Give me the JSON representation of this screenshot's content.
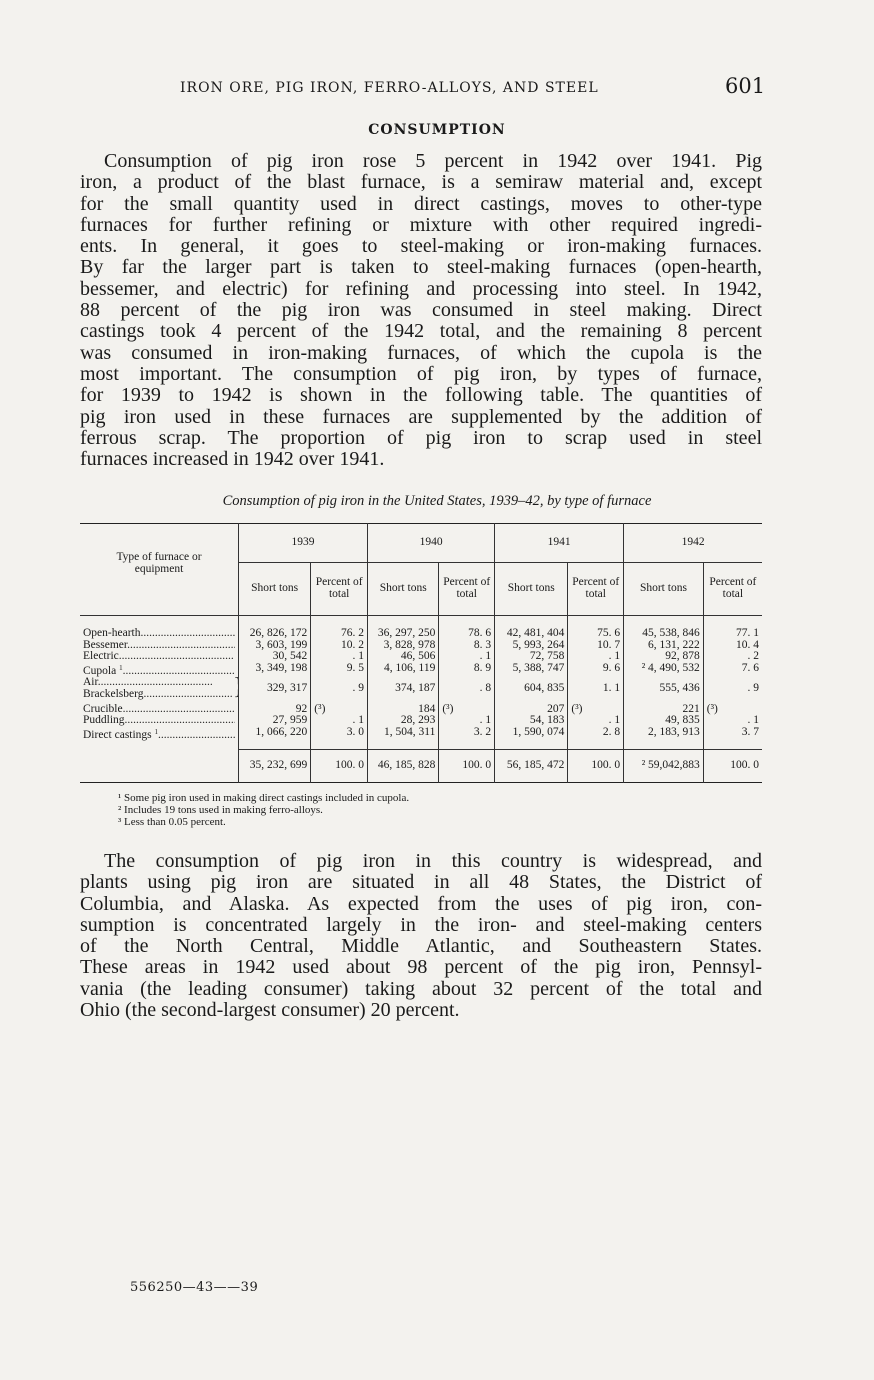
{
  "header": {
    "running_head": "IRON ORE, PIG IRON, FERRO-ALLOYS, AND STEEL",
    "page_number": "601"
  },
  "section_title": "CONSUMPTION",
  "paragraph1": [
    "Consumption of pig iron rose 5 percent in 1942 over 1941. Pig",
    "iron, a product of the blast furnace, is a semiraw material and, except",
    "for the small quantity used in direct castings, moves to other-type",
    "furnaces for further refining or mixture with other required ingredi-",
    "ents. In general, it goes to steel-making or iron-making furnaces.",
    "By far the larger part is taken to steel-making furnaces (open-hearth,",
    "bessemer, and electric) for refining and processing into steel. In 1942,",
    "88 percent of the pig iron was consumed in steel making. Direct",
    "castings took 4 percent of the 1942 total, and the remaining 8 percent",
    "was consumed in iron-making furnaces, of which the cupola is the",
    "most important. The consumption of pig iron, by types of furnace,",
    "for 1939 to 1942 is shown in the following table. The quantities of",
    "pig iron used in these furnaces are supplemented by the addition of",
    "ferrous scrap. The proportion of pig iron to scrap used in steel",
    "furnaces increased in 1942 over 1941."
  ],
  "table": {
    "caption": "Consumption of pig iron in the United States, 1939–42, by type of furnace",
    "row_header": "Type of furnace or equipment",
    "years": [
      "1939",
      "1940",
      "1941",
      "1942"
    ],
    "sub_short": "Short tons",
    "sub_pct": "Percent of total",
    "rows": [
      {
        "label": "Open-hearth",
        "sup": "",
        "v": [
          "26, 826, 172",
          "76. 2",
          "36, 297, 250",
          "78. 6",
          "42, 481, 404",
          "75. 6",
          "45, 538, 846",
          "77. 1"
        ]
      },
      {
        "label": "Bessemer",
        "sup": "",
        "v": [
          "3, 603, 199",
          "10. 2",
          "3, 828, 978",
          "8. 3",
          "5, 993, 264",
          "10. 7",
          "6, 131, 222",
          "10. 4"
        ]
      },
      {
        "label": "Electric",
        "sup": "",
        "v": [
          "30, 542",
          ". 1",
          "46, 506",
          ". 1",
          "72, 758",
          ". 1",
          "92, 878",
          ". 2"
        ]
      },
      {
        "label": "Cupola",
        "sup": "1",
        "v": [
          "3, 349, 198",
          "9. 5",
          "4, 106, 119",
          "8. 9",
          "5, 388, 747",
          "9. 6",
          "² 4, 490, 532",
          "7. 6"
        ]
      },
      {
        "label": "Air",
        "label2": "Brackelsberg",
        "sup": "",
        "v": [
          "329, 317",
          ". 9",
          "374, 187",
          ". 8",
          "604, 835",
          "1. 1",
          "555, 436",
          ". 9"
        ]
      },
      {
        "label": "Crucible",
        "sup": "",
        "v": [
          "92",
          "(³)",
          "184",
          "(³)",
          "207",
          "(³)",
          "221",
          "(³)"
        ]
      },
      {
        "label": "Puddling",
        "sup": "",
        "v": [
          "27, 959",
          ". 1",
          "28, 293",
          ". 1",
          "54, 183",
          ". 1",
          "49, 835",
          ". 1"
        ]
      },
      {
        "label": "Direct castings",
        "sup": "1",
        "v": [
          "1, 066, 220",
          "3. 0",
          "1, 504, 311",
          "3. 2",
          "1, 590, 074",
          "2. 8",
          "2, 183, 913",
          "3. 7"
        ]
      }
    ],
    "totals": [
      "35, 232, 699",
      "100. 0",
      "46, 185, 828",
      "100. 0",
      "56, 185, 472",
      "100. 0",
      "² 59,042,883",
      "100. 0"
    ]
  },
  "footnotes": [
    "¹ Some pig iron used in making direct castings included in cupola.",
    "² Includes 19 tons used in making ferro-alloys.",
    "³ Less than 0.05 percent."
  ],
  "paragraph2": [
    "The consumption of pig iron in this country is widespread, and",
    "plants using pig iron are situated in all 48 States, the District of",
    "Columbia, and Alaska. As expected from the uses of pig iron, con-",
    "sumption is concentrated largely in the iron- and steel-making centers",
    "of the North Central, Middle Atlantic, and Southeastern States.",
    "These areas in 1942 used about 98 percent of the pig iron, Pennsyl-",
    "vania (the leading consumer) taking about 32 percent of the total and",
    "Ohio (the second-largest consumer) 20 percent."
  ],
  "imprint": "556250—43——39"
}
